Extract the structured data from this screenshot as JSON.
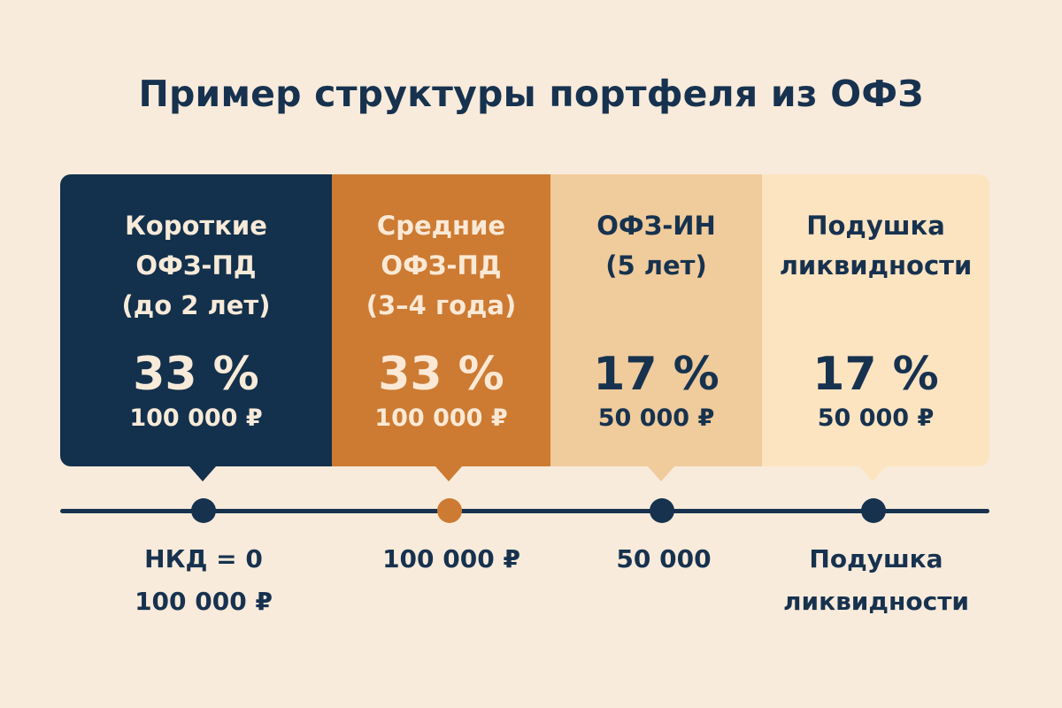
{
  "title": "Пример структуры портфеля из ОФЗ",
  "panels": [
    {
      "lines": [
        "Короткие",
        "ОФЗ-ПД",
        "(до 2 лет)"
      ],
      "percent": "33 %",
      "amount": "100 000 ₽",
      "color": "#13304c"
    },
    {
      "lines": [
        "Средние",
        "ОФЗ-ПД",
        "(3–4 года)"
      ],
      "percent": "33 %",
      "amount": "100 000 ₽",
      "color": "#cd7b33"
    },
    {
      "lines": [
        "ОФЗ-ИН",
        "(5 лет)"
      ],
      "percent": "17 %",
      "amount": "50 000 ₽",
      "color": "#f0cb9b"
    },
    {
      "lines": [
        "Подушка",
        "ликвидности"
      ],
      "percent": "17 %",
      "amount": "50 000 ₽",
      "color": "#fde4c1"
    }
  ],
  "timeline_labels": [
    [
      "НКД = 0",
      "100 000 ₽"
    ],
    [
      "100 000 ₽"
    ],
    [
      "50 000"
    ],
    [
      "Подушка",
      "ликвидности"
    ]
  ],
  "colors": {
    "background": "#f8ebdb",
    "navy": "#13304c",
    "orange": "#cd7b33"
  }
}
